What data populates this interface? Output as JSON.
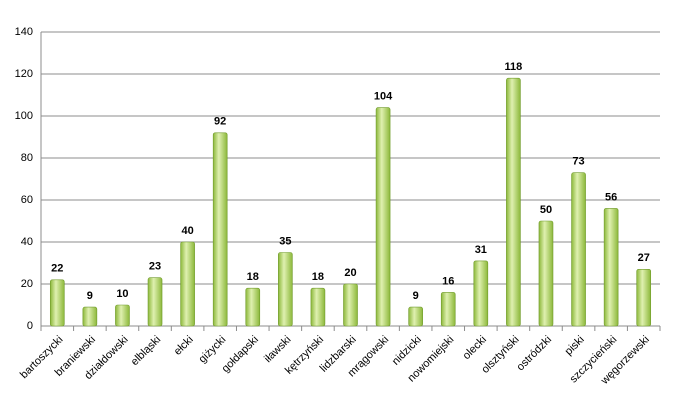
{
  "chart_data": {
    "type": "bar",
    "categories": [
      "bartoszycki",
      "braniewski",
      "działdowski",
      "elbląski",
      "ełcki",
      "giżycki",
      "gołdapski",
      "iławski",
      "kętrzyński",
      "lidzbarski",
      "mrągowski",
      "nidzicki",
      "nowomiejski",
      "olecki",
      "olsztyński",
      "ostródzki",
      "piski",
      "szczycieński",
      "węgorzewski"
    ],
    "values": [
      22,
      9,
      10,
      23,
      40,
      92,
      18,
      35,
      18,
      20,
      104,
      9,
      16,
      31,
      118,
      50,
      73,
      56,
      27
    ],
    "color": "#8cb83a",
    "ylim": [
      0,
      140
    ],
    "yticks": [
      0,
      20,
      40,
      60,
      80,
      100,
      120,
      140
    ],
    "grid": true
  }
}
